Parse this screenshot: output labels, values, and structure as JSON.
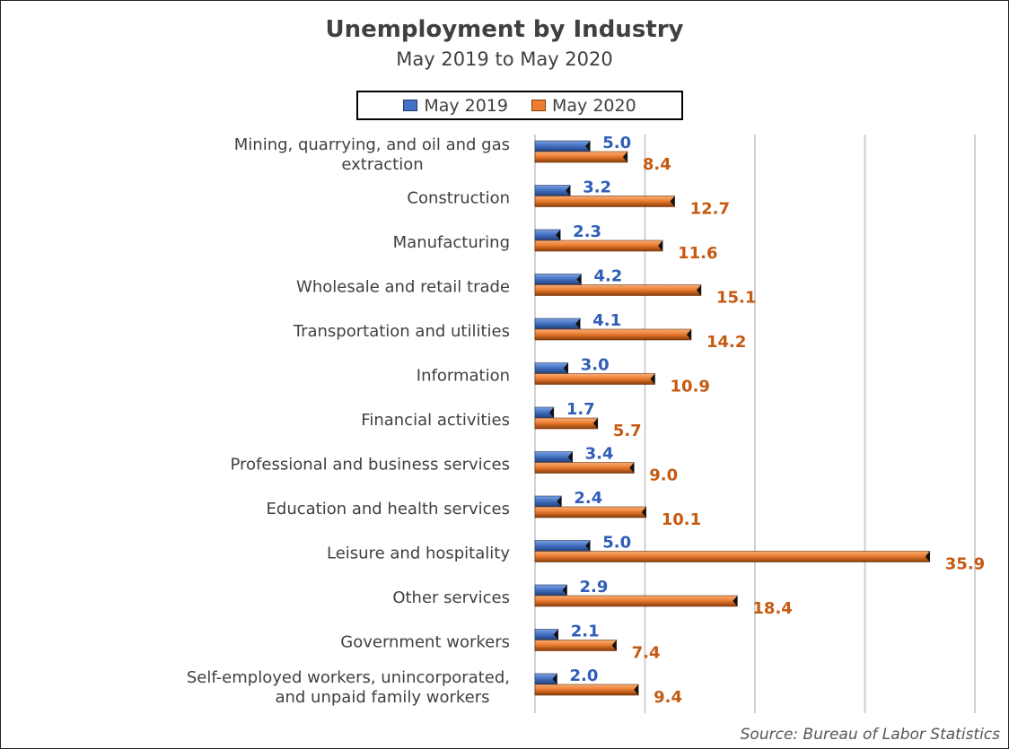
{
  "chart_data": {
    "type": "bar",
    "orientation": "horizontal",
    "title": "Unemployment by Industry",
    "subtitle": "May 2019 to May 2020",
    "categories": [
      [
        "Mining, quarrying, and oil and gas",
        "extraction"
      ],
      [
        "Construction"
      ],
      [
        "Manufacturing"
      ],
      [
        "Wholesale and retail trade"
      ],
      [
        "Transportation and utilities"
      ],
      [
        "Information"
      ],
      [
        "Financial activities"
      ],
      [
        "Professional and business services"
      ],
      [
        "Education and health services"
      ],
      [
        "Leisure and hospitality"
      ],
      [
        "Other services"
      ],
      [
        "Government workers"
      ],
      [
        "Self-employed workers, unincorporated,",
        "and unpaid family workers"
      ]
    ],
    "series": [
      {
        "name": "May 2019",
        "color": "#4472C4",
        "label_color": "#2F5DB8",
        "values": [
          5.0,
          3.2,
          2.3,
          4.2,
          4.1,
          3.0,
          1.7,
          3.4,
          2.4,
          5.0,
          2.9,
          2.1,
          2.0
        ]
      },
      {
        "name": "May 2020",
        "color": "#ED7D31",
        "label_color": "#C55A11",
        "values": [
          8.4,
          12.7,
          11.6,
          15.1,
          14.2,
          10.9,
          5.7,
          9.0,
          10.1,
          35.9,
          18.4,
          7.4,
          9.4
        ]
      }
    ],
    "xlim": [
      0,
      40
    ],
    "gridlines": [
      10,
      20,
      30,
      40
    ],
    "grid": true,
    "tick_labels_shown": false,
    "legend_position": "top",
    "source": "Source: Bureau of Labor Statistics"
  }
}
